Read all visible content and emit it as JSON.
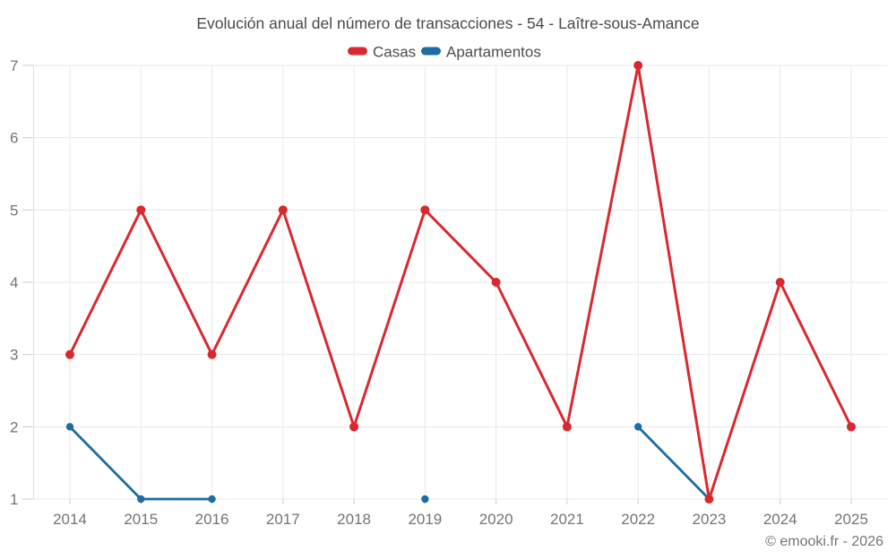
{
  "page": {
    "background": "#ffffff",
    "watermark": "© emooki.fr - 2026"
  },
  "chart_data": {
    "type": "line",
    "title": "Evolución anual del número de transacciones - 54 - Laître-sous-Amance",
    "categories": [
      "2014",
      "2015",
      "2016",
      "2017",
      "2018",
      "2019",
      "2020",
      "2021",
      "2022",
      "2023",
      "2024",
      "2025"
    ],
    "series": [
      {
        "name": "Casas",
        "color": "#d9292f",
        "values": [
          3,
          5,
          3,
          5,
          2,
          5,
          4,
          2,
          7,
          1,
          4,
          2
        ]
      },
      {
        "name": "Apartamentos",
        "color": "#1c6da3",
        "values": [
          2,
          1,
          1,
          null,
          null,
          1,
          null,
          null,
          2,
          1,
          null,
          null
        ]
      }
    ],
    "xlabel": "",
    "ylabel": "",
    "ylim": [
      1,
      7
    ],
    "yticks": [
      1,
      2,
      3,
      4,
      5,
      6,
      7
    ],
    "grid": true,
    "legend_position": "top",
    "colors": {
      "grid": "#e8e8e8",
      "axis": "#e0e0e0",
      "tick": "#cccccc",
      "axis_label": "#757575",
      "title": "#4a4a4a"
    }
  }
}
